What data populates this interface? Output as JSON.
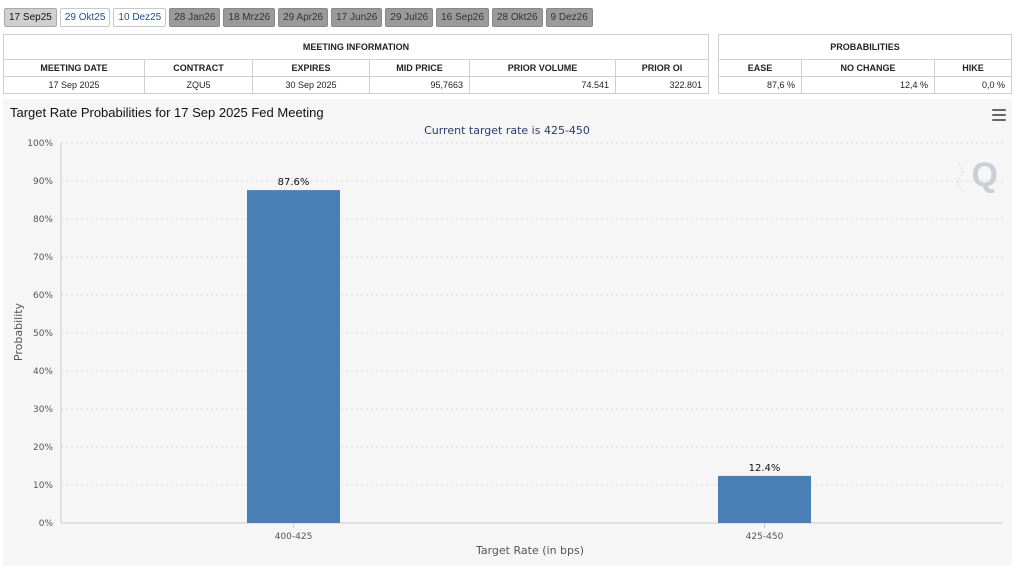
{
  "tabs": [
    {
      "label": "17 Sep25",
      "state": "active"
    },
    {
      "label": "29 Okt25",
      "state": "light"
    },
    {
      "label": "10 Dez25",
      "state": "light"
    },
    {
      "label": "28 Jan26",
      "state": "dark"
    },
    {
      "label": "18 Mrz26",
      "state": "dark"
    },
    {
      "label": "29 Apr26",
      "state": "dark"
    },
    {
      "label": "17 Jun26",
      "state": "dark"
    },
    {
      "label": "29 Jul26",
      "state": "dark"
    },
    {
      "label": "16 Sep26",
      "state": "dark"
    },
    {
      "label": "28 Okt26",
      "state": "dark"
    },
    {
      "label": "9 Dez26",
      "state": "dark"
    }
  ],
  "meeting_info": {
    "title": "MEETING INFORMATION",
    "headers": [
      "MEETING DATE",
      "CONTRACT",
      "EXPIRES",
      "MID PRICE",
      "PRIOR VOLUME",
      "PRIOR OI"
    ],
    "row": [
      "17 Sep 2025",
      "ZQU5",
      "30 Sep 2025",
      "95,7663",
      "74.541",
      "322.801"
    ]
  },
  "probabilities": {
    "title": "PROBABILITIES",
    "headers": [
      "EASE",
      "NO CHANGE",
      "HIKE"
    ],
    "row": [
      "87,6 %",
      "12,4 %",
      "0,0 %"
    ]
  },
  "chart": {
    "title": "Target Rate Probabilities for 17 Sep 2025 Fed Meeting",
    "subtitle": "Current target rate is 425-450",
    "logo_letter": "Q"
  },
  "chart_data": {
    "type": "bar",
    "categories": [
      "400-425",
      "425-450"
    ],
    "values": [
      87.6,
      12.4
    ],
    "data_labels": [
      "87.6%",
      "12.4%"
    ],
    "ylim": [
      0,
      100
    ],
    "yticks": [
      "0%",
      "10%",
      "20%",
      "30%",
      "40%",
      "50%",
      "60%",
      "70%",
      "80%",
      "90%",
      "100%"
    ],
    "xlabel": "Target Rate (in bps)",
    "ylabel": "Probability",
    "grid": true,
    "bar_color": "#4a7fb5"
  }
}
